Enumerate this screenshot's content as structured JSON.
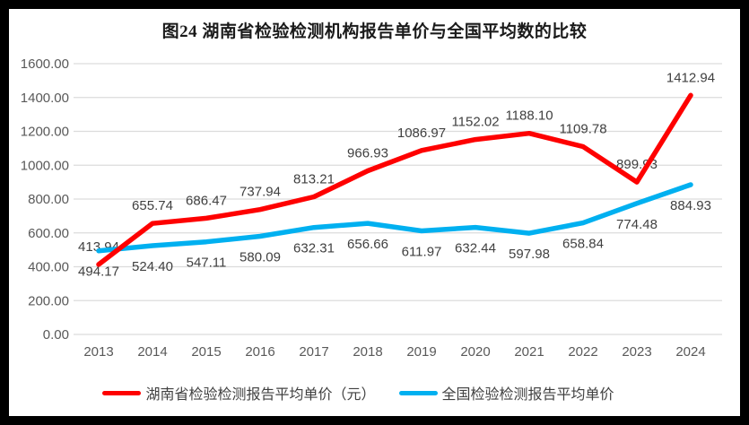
{
  "chart_data": {
    "type": "line",
    "title": "图24 湖南省检验检测机构报告单价与全国平均数的比较",
    "categories": [
      "2013",
      "2014",
      "2015",
      "2016",
      "2017",
      "2018",
      "2019",
      "2020",
      "2021",
      "2022",
      "2023",
      "2024"
    ],
    "series": [
      {
        "name": "湖南省检验检测报告平均单价（元）",
        "color": "#fe0000",
        "values": [
          413.94,
          655.74,
          686.47,
          737.94,
          813.21,
          966.93,
          1086.97,
          1152.02,
          1188.1,
          1109.78,
          899.93,
          1412.94
        ],
        "data_labels_position": "above"
      },
      {
        "name": "全国检验检测报告平均单价",
        "color": "#00b0f0",
        "values": [
          494.17,
          524.4,
          547.11,
          580.09,
          632.31,
          656.66,
          611.97,
          632.44,
          597.98,
          658.84,
          774.48,
          884.93
        ],
        "data_labels_position": "below"
      }
    ],
    "ylim": [
      0,
      1600
    ],
    "ytick_step": 200,
    "ytick_labels": [
      "0.00",
      "200.00",
      "400.00",
      "600.00",
      "800.00",
      "1000.00",
      "1200.00",
      "1400.00",
      "1600.00"
    ],
    "label_decimals": 2,
    "grid": "horizontal",
    "legend_position": "bottom"
  },
  "colors": {
    "grid": "#dcdcdc",
    "axis_text": "#595959",
    "data_label_text": "#404040",
    "title_text": "#1a1a1a",
    "frame_border": "#000000",
    "background": "#ffffff"
  }
}
